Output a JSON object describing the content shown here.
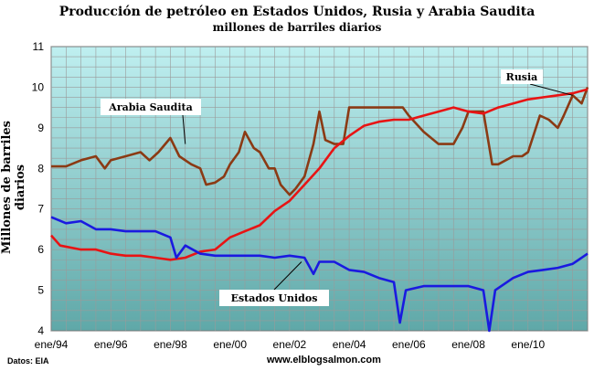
{
  "header": {
    "title": "Producción de petróleo en Estados Unidos, Rusia y Arabia Saudita",
    "subtitle": "millones de barriles diarios"
  },
  "footer": {
    "source": "Datos: EIA",
    "site": "www.elblogsalmon.com"
  },
  "colors": {
    "background_top": "#bfeff0",
    "background_bottom": "#5fa8a8",
    "grid": "#9a9a9a",
    "saudi": "#8b3a14",
    "russia": "#e81414",
    "usa": "#1a1ae0"
  },
  "chart_data": {
    "type": "line",
    "title": "Producción de petróleo en Estados Unidos, Rusia y Arabia Saudita",
    "subtitle": "millones de barriles diarios",
    "ylabel": "Millones de barriles diarios",
    "xlabel": "",
    "xlim": [
      1994.0,
      2012.0
    ],
    "ylim": [
      4,
      11
    ],
    "yticks": [
      4,
      5,
      6,
      7,
      8,
      9,
      10,
      11
    ],
    "xticks": [
      {
        "label": "ene/94",
        "x": 1994
      },
      {
        "label": "ene/96",
        "x": 1996
      },
      {
        "label": "ene/98",
        "x": 1998
      },
      {
        "label": "ene/00",
        "x": 2000
      },
      {
        "label": "ene/02",
        "x": 2002
      },
      {
        "label": "ene/04",
        "x": 2004
      },
      {
        "label": "ene/06",
        "x": 2006
      },
      {
        "label": "ene/08",
        "x": 2008
      },
      {
        "label": "ene/10",
        "x": 2010
      }
    ],
    "grid": true,
    "series": [
      {
        "name": "Arabia Saudita",
        "color": "#8b3a14",
        "points": [
          [
            1994.0,
            8.05
          ],
          [
            1994.5,
            8.05
          ],
          [
            1995.0,
            8.2
          ],
          [
            1995.5,
            8.3
          ],
          [
            1995.8,
            8.0
          ],
          [
            1996.0,
            8.2
          ],
          [
            1996.5,
            8.3
          ],
          [
            1997.0,
            8.4
          ],
          [
            1997.3,
            8.2
          ],
          [
            1997.6,
            8.4
          ],
          [
            1998.0,
            8.75
          ],
          [
            1998.3,
            8.3
          ],
          [
            1998.7,
            8.1
          ],
          [
            1999.0,
            8.0
          ],
          [
            1999.2,
            7.6
          ],
          [
            1999.5,
            7.65
          ],
          [
            1999.8,
            7.8
          ],
          [
            2000.0,
            8.1
          ],
          [
            2000.3,
            8.4
          ],
          [
            2000.5,
            8.9
          ],
          [
            2000.8,
            8.5
          ],
          [
            2001.0,
            8.4
          ],
          [
            2001.3,
            8.0
          ],
          [
            2001.5,
            8.0
          ],
          [
            2001.7,
            7.6
          ],
          [
            2002.0,
            7.35
          ],
          [
            2002.2,
            7.5
          ],
          [
            2002.5,
            7.8
          ],
          [
            2002.8,
            8.6
          ],
          [
            2003.0,
            9.4
          ],
          [
            2003.2,
            8.7
          ],
          [
            2003.5,
            8.6
          ],
          [
            2003.8,
            8.6
          ],
          [
            2004.0,
            9.5
          ],
          [
            2004.5,
            9.5
          ],
          [
            2005.0,
            9.5
          ],
          [
            2005.5,
            9.5
          ],
          [
            2005.8,
            9.5
          ],
          [
            2006.0,
            9.3
          ],
          [
            2006.5,
            8.9
          ],
          [
            2007.0,
            8.6
          ],
          [
            2007.5,
            8.6
          ],
          [
            2007.8,
            9.0
          ],
          [
            2008.0,
            9.4
          ],
          [
            2008.5,
            9.4
          ],
          [
            2008.8,
            8.1
          ],
          [
            2009.0,
            8.1
          ],
          [
            2009.5,
            8.3
          ],
          [
            2009.8,
            8.3
          ],
          [
            2010.0,
            8.4
          ],
          [
            2010.4,
            9.3
          ],
          [
            2010.7,
            9.2
          ],
          [
            2011.0,
            9.0
          ],
          [
            2011.2,
            9.3
          ],
          [
            2011.5,
            9.8
          ],
          [
            2011.8,
            9.6
          ],
          [
            2012.0,
            10.0
          ]
        ]
      },
      {
        "name": "Rusia",
        "color": "#e81414",
        "points": [
          [
            1994.0,
            6.35
          ],
          [
            1994.3,
            6.1
          ],
          [
            1995.0,
            6.0
          ],
          [
            1995.5,
            6.0
          ],
          [
            1996.0,
            5.9
          ],
          [
            1996.5,
            5.85
          ],
          [
            1997.0,
            5.85
          ],
          [
            1997.5,
            5.8
          ],
          [
            1998.0,
            5.75
          ],
          [
            1998.5,
            5.8
          ],
          [
            1999.0,
            5.95
          ],
          [
            1999.5,
            6.0
          ],
          [
            2000.0,
            6.3
          ],
          [
            2000.5,
            6.45
          ],
          [
            2001.0,
            6.6
          ],
          [
            2001.5,
            6.95
          ],
          [
            2002.0,
            7.2
          ],
          [
            2002.5,
            7.6
          ],
          [
            2003.0,
            8.0
          ],
          [
            2003.5,
            8.5
          ],
          [
            2004.0,
            8.8
          ],
          [
            2004.5,
            9.05
          ],
          [
            2005.0,
            9.15
          ],
          [
            2005.5,
            9.2
          ],
          [
            2006.0,
            9.2
          ],
          [
            2006.5,
            9.3
          ],
          [
            2007.0,
            9.4
          ],
          [
            2007.5,
            9.5
          ],
          [
            2008.0,
            9.4
          ],
          [
            2008.5,
            9.35
          ],
          [
            2009.0,
            9.5
          ],
          [
            2009.5,
            9.6
          ],
          [
            2010.0,
            9.7
          ],
          [
            2010.5,
            9.75
          ],
          [
            2011.0,
            9.8
          ],
          [
            2011.5,
            9.85
          ],
          [
            2012.0,
            9.95
          ]
        ]
      },
      {
        "name": "Estados Unidos",
        "color": "#1a1ae0",
        "points": [
          [
            1994.0,
            6.8
          ],
          [
            1994.5,
            6.65
          ],
          [
            1995.0,
            6.7
          ],
          [
            1995.5,
            6.5
          ],
          [
            1996.0,
            6.5
          ],
          [
            1996.5,
            6.45
          ],
          [
            1997.0,
            6.45
          ],
          [
            1997.5,
            6.45
          ],
          [
            1998.0,
            6.3
          ],
          [
            1998.2,
            5.8
          ],
          [
            1998.5,
            6.1
          ],
          [
            1999.0,
            5.9
          ],
          [
            1999.5,
            5.85
          ],
          [
            2000.0,
            5.85
          ],
          [
            2000.5,
            5.85
          ],
          [
            2001.0,
            5.85
          ],
          [
            2001.5,
            5.8
          ],
          [
            2002.0,
            5.85
          ],
          [
            2002.5,
            5.8
          ],
          [
            2002.8,
            5.4
          ],
          [
            2003.0,
            5.7
          ],
          [
            2003.5,
            5.7
          ],
          [
            2004.0,
            5.5
          ],
          [
            2004.5,
            5.45
          ],
          [
            2005.0,
            5.3
          ],
          [
            2005.5,
            5.2
          ],
          [
            2005.7,
            4.2
          ],
          [
            2005.9,
            5.0
          ],
          [
            2006.5,
            5.1
          ],
          [
            2007.0,
            5.1
          ],
          [
            2007.5,
            5.1
          ],
          [
            2008.0,
            5.1
          ],
          [
            2008.5,
            5.0
          ],
          [
            2008.7,
            4.0
          ],
          [
            2008.9,
            5.0
          ],
          [
            2009.5,
            5.3
          ],
          [
            2010.0,
            5.45
          ],
          [
            2010.5,
            5.5
          ],
          [
            2011.0,
            5.55
          ],
          [
            2011.5,
            5.65
          ],
          [
            2012.0,
            5.9
          ]
        ]
      }
    ],
    "annotations": [
      {
        "text": "Arabia Saudita",
        "target": [
          1998.5,
          8.6
        ]
      },
      {
        "text": "Rusia",
        "target": [
          2011.5,
          9.8
        ]
      },
      {
        "text": "Estados Unidos",
        "target": [
          2002.4,
          5.7
        ]
      }
    ]
  }
}
